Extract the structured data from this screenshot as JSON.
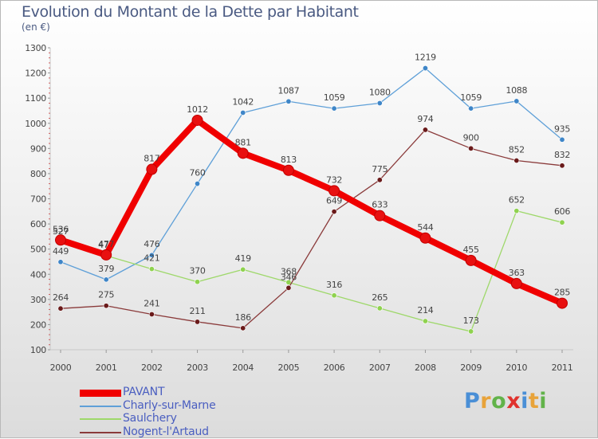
{
  "header": {
    "title": "Evolution du Montant de la Dette par Habitant",
    "subtitle": "(en €)"
  },
  "logo": {
    "text": "Proxiti",
    "colors": [
      "#4a8fd6",
      "#e8a33a",
      "#62b34a",
      "#e0322d",
      "#4a8fd6",
      "#e8a33a",
      "#62b34a"
    ]
  },
  "chart_data": {
    "type": "line",
    "title": "Evolution du Montant de la Dette par Habitant",
    "ylabel": "(en €)",
    "xlabel": "",
    "ylim": [
      100,
      1300
    ],
    "yticks": [
      100,
      200,
      300,
      400,
      500,
      600,
      700,
      800,
      900,
      1000,
      1100,
      1200,
      1300
    ],
    "grid": false,
    "legend_position": "bottom-left",
    "x": [
      "2000",
      "2001",
      "2002",
      "2003",
      "2004",
      "2005",
      "2006",
      "2007",
      "2008",
      "2009",
      "2010",
      "2011"
    ],
    "series": [
      {
        "name": "PAVANT",
        "color": "#f00000",
        "marker_color": "#e81010",
        "emphasis": true,
        "values": [
          536,
          477,
          817,
          1012,
          881,
          813,
          732,
          633,
          544,
          455,
          363,
          285
        ]
      },
      {
        "name": "Charly-sur-Marne",
        "color": "#5fa0d8",
        "marker_color": "#3f86c8",
        "values": [
          449,
          379,
          476,
          760,
          1042,
          1087,
          1059,
          1080,
          1219,
          1059,
          1088,
          935
        ]
      },
      {
        "name": "Saulchery",
        "color": "#9ed86a",
        "marker_color": "#8fd24f",
        "values": [
          527,
          474,
          421,
          370,
          419,
          368,
          316,
          265,
          214,
          173,
          652,
          606
        ]
      },
      {
        "name": "Nogent-l'Artaud",
        "color": "#8a3a3a",
        "marker_color": "#6a1a1a",
        "values": [
          264,
          275,
          241,
          211,
          186,
          346,
          649,
          775,
          974,
          900,
          852,
          832
        ]
      }
    ]
  }
}
